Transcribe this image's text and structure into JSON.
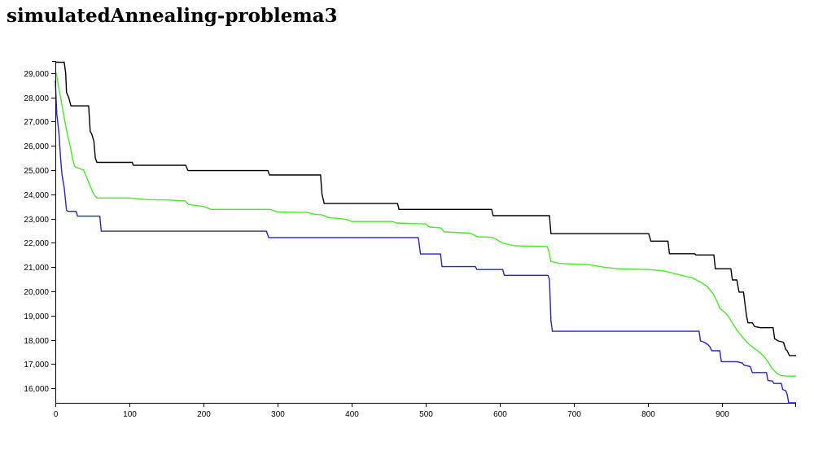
{
  "page": {
    "title": "simulatedAnnealing-problema3"
  },
  "chart_data": {
    "type": "line",
    "title": "simulatedAnnealing-problema3",
    "xlim": [
      0,
      1000
    ],
    "ylim": [
      15400,
      29500
    ],
    "x_ticks": [
      0,
      100,
      200,
      300,
      400,
      500,
      600,
      700,
      800,
      900
    ],
    "x_tick_labels": [
      "0",
      "100",
      "200",
      "300",
      "400",
      "500",
      "600",
      "700",
      "800",
      "900"
    ],
    "y_ticks": [
      16000,
      17000,
      18000,
      19000,
      20000,
      21000,
      22000,
      23000,
      24000,
      25000,
      26000,
      27000,
      28000,
      29000
    ],
    "y_tick_labels": [
      "16,000",
      "17,000",
      "18,000",
      "19,000",
      "20,000",
      "21,000",
      "22,000",
      "23,000",
      "24,000",
      "25,000",
      "26,000",
      "27,000",
      "28,000",
      "29,000"
    ],
    "grid": false,
    "series": [
      {
        "color": "#000000",
        "points": [
          [
            0,
            29450
          ],
          [
            12,
            29450
          ],
          [
            14,
            29000
          ],
          [
            15,
            28200
          ],
          [
            18,
            28000
          ],
          [
            21,
            27650
          ],
          [
            45,
            27650
          ],
          [
            47,
            26600
          ],
          [
            49,
            26500
          ],
          [
            52,
            26200
          ],
          [
            54,
            25500
          ],
          [
            56,
            25320
          ],
          [
            104,
            25320
          ],
          [
            105,
            25200
          ],
          [
            176,
            25200
          ],
          [
            179,
            24980
          ],
          [
            287,
            24980
          ],
          [
            289,
            24800
          ],
          [
            358,
            24800
          ],
          [
            360,
            24000
          ],
          [
            363,
            23620
          ],
          [
            462,
            23620
          ],
          [
            464,
            23380
          ],
          [
            589,
            23380
          ],
          [
            591,
            23120
          ],
          [
            667,
            23120
          ],
          [
            669,
            22380
          ],
          [
            801,
            22380
          ],
          [
            804,
            22070
          ],
          [
            827,
            22070
          ],
          [
            829,
            21550
          ],
          [
            863,
            21550
          ],
          [
            865,
            21500
          ],
          [
            889,
            21500
          ],
          [
            891,
            20930
          ],
          [
            912,
            20930
          ],
          [
            914,
            20470
          ],
          [
            920,
            20470
          ],
          [
            923,
            19970
          ],
          [
            929,
            19970
          ],
          [
            933,
            19000
          ],
          [
            935,
            18700
          ],
          [
            941,
            18700
          ],
          [
            944,
            18550
          ],
          [
            952,
            18500
          ],
          [
            969,
            18500
          ],
          [
            971,
            18050
          ],
          [
            976,
            17950
          ],
          [
            983,
            17900
          ],
          [
            986,
            17600
          ],
          [
            988,
            17550
          ],
          [
            991,
            17350
          ],
          [
            1000,
            17350
          ]
        ]
      },
      {
        "color": "#44ee22",
        "points": [
          [
            0,
            29100
          ],
          [
            2,
            28900
          ],
          [
            4,
            28500
          ],
          [
            7,
            28000
          ],
          [
            10,
            27500
          ],
          [
            13,
            27000
          ],
          [
            16,
            26500
          ],
          [
            20,
            26000
          ],
          [
            23,
            25500
          ],
          [
            26,
            25150
          ],
          [
            30,
            25100
          ],
          [
            38,
            25000
          ],
          [
            41,
            24800
          ],
          [
            45,
            24500
          ],
          [
            49,
            24200
          ],
          [
            52,
            24000
          ],
          [
            56,
            23850
          ],
          [
            100,
            23850
          ],
          [
            125,
            23780
          ],
          [
            150,
            23770
          ],
          [
            175,
            23730
          ],
          [
            180,
            23580
          ],
          [
            200,
            23500
          ],
          [
            210,
            23380
          ],
          [
            290,
            23380
          ],
          [
            300,
            23280
          ],
          [
            340,
            23250
          ],
          [
            350,
            23180
          ],
          [
            360,
            23150
          ],
          [
            370,
            23030
          ],
          [
            385,
            23000
          ],
          [
            395,
            22950
          ],
          [
            400,
            22880
          ],
          [
            455,
            22880
          ],
          [
            460,
            22820
          ],
          [
            480,
            22800
          ],
          [
            500,
            22780
          ],
          [
            505,
            22650
          ],
          [
            520,
            22620
          ],
          [
            525,
            22450
          ],
          [
            560,
            22400
          ],
          [
            570,
            22250
          ],
          [
            590,
            22230
          ],
          [
            605,
            21980
          ],
          [
            620,
            21880
          ],
          [
            664,
            21850
          ],
          [
            666,
            21700
          ],
          [
            669,
            21230
          ],
          [
            680,
            21150
          ],
          [
            720,
            21100
          ],
          [
            740,
            21000
          ],
          [
            760,
            20930
          ],
          [
            800,
            20900
          ],
          [
            820,
            20850
          ],
          [
            840,
            20700
          ],
          [
            860,
            20550
          ],
          [
            870,
            20400
          ],
          [
            880,
            20200
          ],
          [
            888,
            19900
          ],
          [
            893,
            19600
          ],
          [
            897,
            19300
          ],
          [
            905,
            19100
          ],
          [
            910,
            18900
          ],
          [
            915,
            18650
          ],
          [
            920,
            18400
          ],
          [
            928,
            18100
          ],
          [
            935,
            17850
          ],
          [
            942,
            17680
          ],
          [
            950,
            17500
          ],
          [
            957,
            17300
          ],
          [
            963,
            17050
          ],
          [
            968,
            16800
          ],
          [
            975,
            16600
          ],
          [
            980,
            16520
          ],
          [
            990,
            16500
          ],
          [
            1000,
            16500
          ]
        ]
      },
      {
        "color": "#2222dd",
        "points": [
          [
            0,
            28700
          ],
          [
            1,
            28000
          ],
          [
            2,
            27300
          ],
          [
            3,
            27050
          ],
          [
            5,
            26500
          ],
          [
            7,
            25500
          ],
          [
            9,
            24800
          ],
          [
            12,
            24270
          ],
          [
            15,
            23350
          ],
          [
            17,
            23300
          ],
          [
            28,
            23300
          ],
          [
            30,
            23100
          ],
          [
            60,
            23100
          ],
          [
            62,
            22480
          ],
          [
            285,
            22480
          ],
          [
            288,
            22220
          ],
          [
            490,
            22220
          ],
          [
            493,
            21540
          ],
          [
            520,
            21540
          ],
          [
            522,
            21020
          ],
          [
            567,
            21020
          ],
          [
            569,
            20900
          ],
          [
            604,
            20900
          ],
          [
            606,
            20660
          ],
          [
            665,
            20660
          ],
          [
            667,
            20500
          ],
          [
            669,
            18800
          ],
          [
            671,
            18350
          ],
          [
            869,
            18350
          ],
          [
            871,
            17950
          ],
          [
            876,
            17900
          ],
          [
            881,
            17800
          ],
          [
            884,
            17700
          ],
          [
            886,
            17550
          ],
          [
            897,
            17550
          ],
          [
            899,
            17100
          ],
          [
            920,
            17100
          ],
          [
            927,
            17050
          ],
          [
            930,
            16950
          ],
          [
            938,
            16900
          ],
          [
            941,
            16650
          ],
          [
            960,
            16650
          ],
          [
            962,
            16320
          ],
          [
            968,
            16300
          ],
          [
            970,
            16200
          ],
          [
            980,
            16200
          ],
          [
            982,
            15950
          ],
          [
            986,
            15900
          ],
          [
            988,
            15750
          ],
          [
            990,
            15400
          ],
          [
            1000,
            15400
          ]
        ]
      }
    ]
  }
}
